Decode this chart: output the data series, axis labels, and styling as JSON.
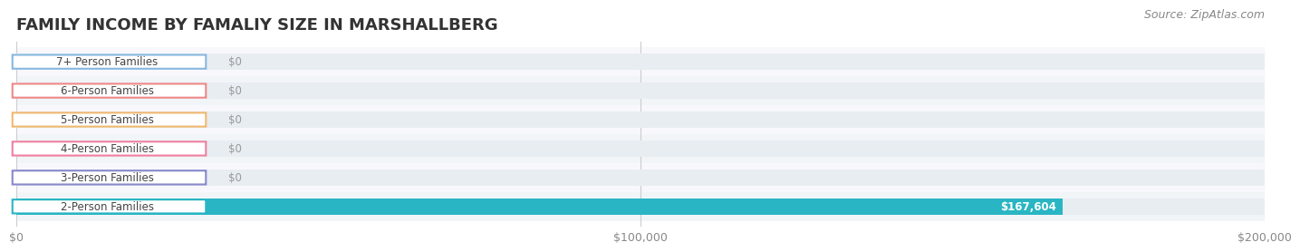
{
  "title": "FAMILY INCOME BY FAMALIY SIZE IN MARSHALLBERG",
  "source": "Source: ZipAtlas.com",
  "categories": [
    "2-Person Families",
    "3-Person Families",
    "4-Person Families",
    "5-Person Families",
    "6-Person Families",
    "7+ Person Families"
  ],
  "values": [
    167604,
    0,
    0,
    0,
    0,
    0
  ],
  "bar_colors": [
    "#29b5c3",
    "#a8a8d8",
    "#f4a0bb",
    "#f8ceA0",
    "#f4a0a8",
    "#a8c8e8"
  ],
  "label_colors": [
    "#29b5c3",
    "#8888cc",
    "#f080a0",
    "#f0b870",
    "#f08888",
    "#88b8e0"
  ],
  "bg_row_colors": [
    "#f0f4f8",
    "#f8f8fc"
  ],
  "track_color": "#e8edf2",
  "bar_label_color": "#ffffff",
  "zero_label_color": "#888888",
  "xlim": [
    0,
    200000
  ],
  "xticks": [
    0,
    100000,
    200000
  ],
  "xtick_labels": [
    "$0",
    "$100,000",
    "$200,000"
  ],
  "title_fontsize": 13,
  "source_fontsize": 9,
  "bar_height": 0.55,
  "background_color": "#ffffff",
  "value_labels": [
    "$167,604",
    "$0",
    "$0",
    "$0",
    "$0",
    "$0"
  ]
}
